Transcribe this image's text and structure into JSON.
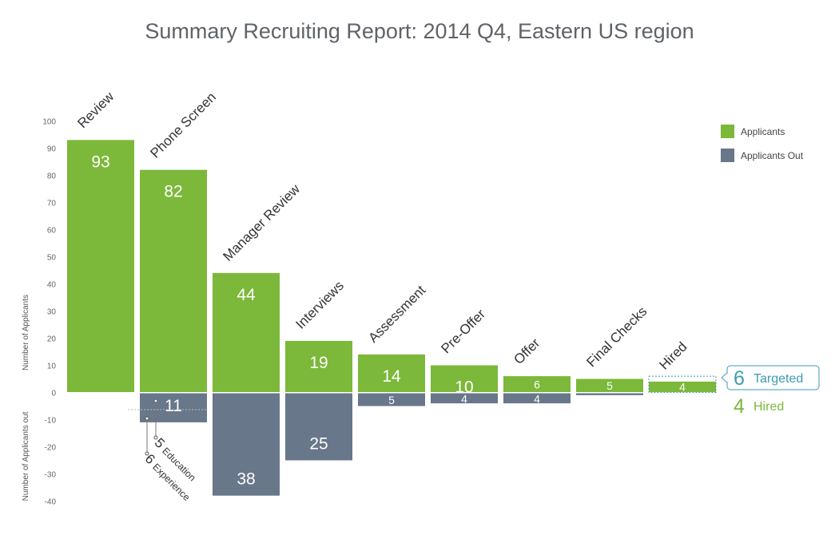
{
  "chart_data": {
    "type": "bar",
    "title": "Summary Recruiting Report: 2014 Q4, Eastern US region",
    "ylabel_top": "Number of Applicants",
    "ylabel_bottom": "Number of Applicants out",
    "yticks": [
      100,
      90,
      80,
      70,
      60,
      50,
      40,
      30,
      20,
      10,
      0,
      -10,
      -20,
      -30,
      -40
    ],
    "ylim": [
      -40,
      100
    ],
    "categories": [
      "Review",
      "Phone Screen",
      "Manager Review",
      "Interviews",
      "Assessment",
      "Pre-Offer",
      "Offer",
      "Final Checks",
      "Hired"
    ],
    "series": [
      {
        "name": "Applicants",
        "values": [
          93,
          82,
          44,
          19,
          14,
          10,
          6,
          5,
          4
        ],
        "color": "#7cb83a"
      },
      {
        "name": "Applicants Out",
        "values": [
          0,
          -11,
          -38,
          -25,
          -5,
          -4,
          -4,
          -1,
          0
        ],
        "color": "#687789"
      }
    ],
    "legend": {
      "position": "top-right"
    },
    "annotations": {
      "phone_screen_breakdown": [
        {
          "value": "5",
          "label": "Education"
        },
        {
          "value": "6",
          "label": "Experience"
        }
      ],
      "summary": {
        "targeted_value": "6",
        "targeted_label": "Targeted",
        "targeted_color": "#3d9bb3",
        "hired_value": "4",
        "hired_label": "Hired",
        "hired_color": "#7cb83a"
      }
    }
  }
}
